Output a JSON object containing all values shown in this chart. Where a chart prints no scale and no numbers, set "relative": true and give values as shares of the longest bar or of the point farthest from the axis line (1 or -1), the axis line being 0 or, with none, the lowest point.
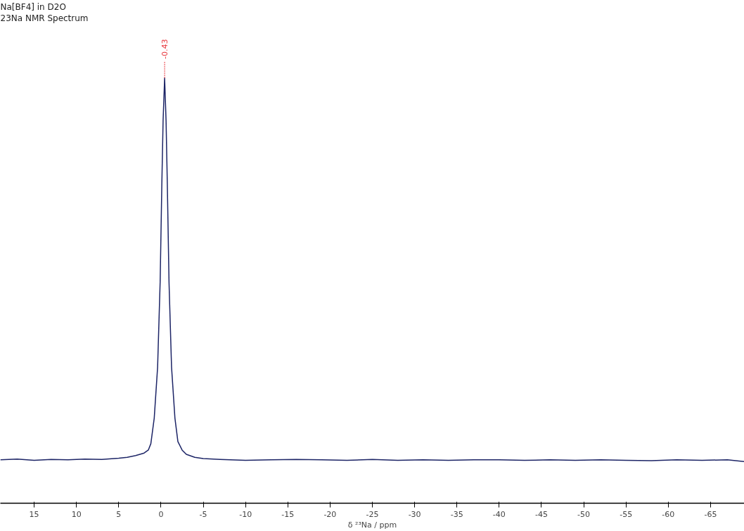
{
  "chart_data": {
    "type": "line",
    "title": "Na[BF4] in D2O",
    "subtitle": "23Na NMR Spectrum",
    "xlabel": "δ ²³Na / ppm",
    "relative": true,
    "xlim": [
      19,
      -69
    ],
    "xticks": [
      15,
      10,
      5,
      0,
      -5,
      -10,
      -15,
      -20,
      -25,
      -30,
      -35,
      -40,
      -45,
      -50,
      -55,
      -60,
      -65
    ],
    "grid": false,
    "tick_labels": "x",
    "marker": "none",
    "line_style": "solid",
    "annotations": [
      {
        "text": "-0.43",
        "x": -0.43,
        "y": 1
      }
    ],
    "series": [
      {
        "color": "#1c2466",
        "x": [
          19,
          17,
          15,
          13,
          11,
          9,
          7,
          5,
          4,
          3,
          2,
          1.5,
          1.2,
          0.8,
          0.4,
          0.1,
          -0.1,
          -0.25,
          -0.43,
          -0.6,
          -0.75,
          -0.95,
          -1.25,
          -1.65,
          -2.0,
          -2.5,
          -3,
          -4,
          -5,
          -7,
          -10,
          -13,
          -16,
          -19,
          -22,
          -25,
          -28,
          -31,
          -34,
          -37,
          -40,
          -43,
          -46,
          -49,
          -52,
          -55,
          -58,
          -61,
          -64,
          -67,
          -69
        ],
        "values": [
          0.102,
          0.104,
          0.101,
          0.103,
          0.102,
          0.104,
          0.103,
          0.106,
          0.108,
          0.112,
          0.118,
          0.125,
          0.14,
          0.2,
          0.32,
          0.52,
          0.75,
          0.9,
          1.0,
          0.9,
          0.75,
          0.52,
          0.32,
          0.2,
          0.145,
          0.125,
          0.115,
          0.108,
          0.105,
          0.103,
          0.101,
          0.102,
          0.103,
          0.102,
          0.101,
          0.103,
          0.101,
          0.102,
          0.101,
          0.102,
          0.102,
          0.101,
          0.102,
          0.101,
          0.102,
          0.101,
          0.1,
          0.102,
          0.101,
          0.102,
          0.098
        ]
      }
    ]
  }
}
